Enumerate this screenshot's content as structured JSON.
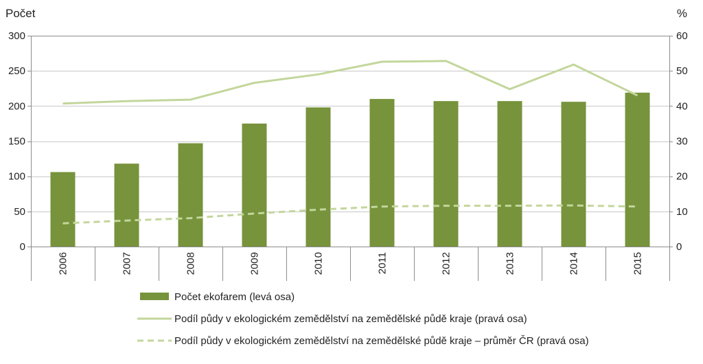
{
  "chart_data": {
    "type": "bar",
    "categories": [
      "2006",
      "2007",
      "2008",
      "2009",
      "2010",
      "2011",
      "2012",
      "2013",
      "2014",
      "2015"
    ],
    "ylabel_left": "Počet",
    "ylabel_right": "%",
    "ylim_left": [
      0,
      300
    ],
    "ylim_right": [
      0,
      60
    ],
    "yticks_left": [
      0,
      50,
      100,
      150,
      200,
      250,
      300
    ],
    "yticks_right": [
      0,
      10,
      20,
      30,
      40,
      50,
      60
    ],
    "grid": true,
    "legend_position": "bottom",
    "series": [
      {
        "name": "Počet ekofarem (levá osa)",
        "type": "bar",
        "axis": "left",
        "color": "#77933c",
        "values": [
          106,
          118,
          147,
          175,
          198,
          210,
          207,
          207,
          206,
          219
        ]
      },
      {
        "name": "Podíl půdy v ekologickém zemědělství na zemědělské půdě kraje (pravá osa)",
        "type": "line",
        "axis": "right",
        "color": "#c3d69b",
        "dash": "solid",
        "values": [
          40.7,
          41.4,
          41.8,
          46.6,
          49.0,
          52.6,
          52.8,
          44.8,
          51.8,
          43.0
        ]
      },
      {
        "name": "Podíl půdy v ekologickém zemědělství na zemědělské půdě kraje – průměr ČR (pravá osa)",
        "type": "line",
        "axis": "right",
        "color": "#c3d69b",
        "dash": "dashed",
        "values": [
          6.6,
          7.4,
          8.1,
          9.4,
          10.5,
          11.4,
          11.6,
          11.6,
          11.7,
          11.4
        ]
      }
    ]
  }
}
